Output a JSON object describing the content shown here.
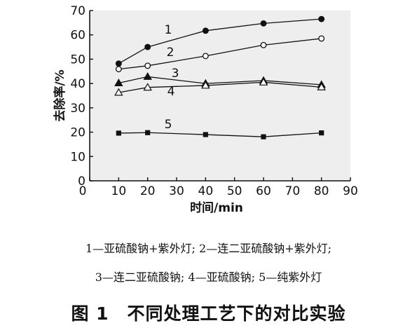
{
  "chart_data": {
    "type": "line",
    "x": [
      10,
      20,
      40,
      60,
      80
    ],
    "xticks": [
      0,
      10,
      20,
      30,
      40,
      50,
      60,
      70,
      80,
      90
    ],
    "yticks": [
      0,
      10,
      20,
      30,
      40,
      50,
      60,
      70
    ],
    "xlim": [
      0,
      90
    ],
    "ylim": [
      0,
      70
    ],
    "xlabel": "时间/min",
    "ylabel": "去除率/%",
    "grid": false,
    "series": [
      {
        "name": "1",
        "marker": "filled-circle",
        "values": [
          48.2,
          55.0,
          61.7,
          64.7,
          66.5
        ]
      },
      {
        "name": "2",
        "marker": "open-circle",
        "values": [
          45.9,
          47.3,
          51.3,
          55.8,
          58.5
        ]
      },
      {
        "name": "3",
        "marker": "filled-triangle",
        "values": [
          40.2,
          42.8,
          40.0,
          41.2,
          39.5
        ]
      },
      {
        "name": "4",
        "marker": "open-triangle",
        "values": [
          36.3,
          38.4,
          39.2,
          40.5,
          38.5
        ]
      },
      {
        "name": "5",
        "marker": "filled-square",
        "values": [
          19.6,
          19.8,
          19.0,
          18.1,
          19.7
        ]
      }
    ]
  },
  "legend": {
    "line1": "1—亚硫酸钠+紫外灯; 2—连二亚硫酸钠+紫外灯;",
    "line2": "3—连二亚硫酸钠; 4—亚硫酸钠; 5—纯紫外灯"
  },
  "caption": {
    "figure_number": "图 1",
    "title": "不同处理工艺下的对比实验"
  }
}
